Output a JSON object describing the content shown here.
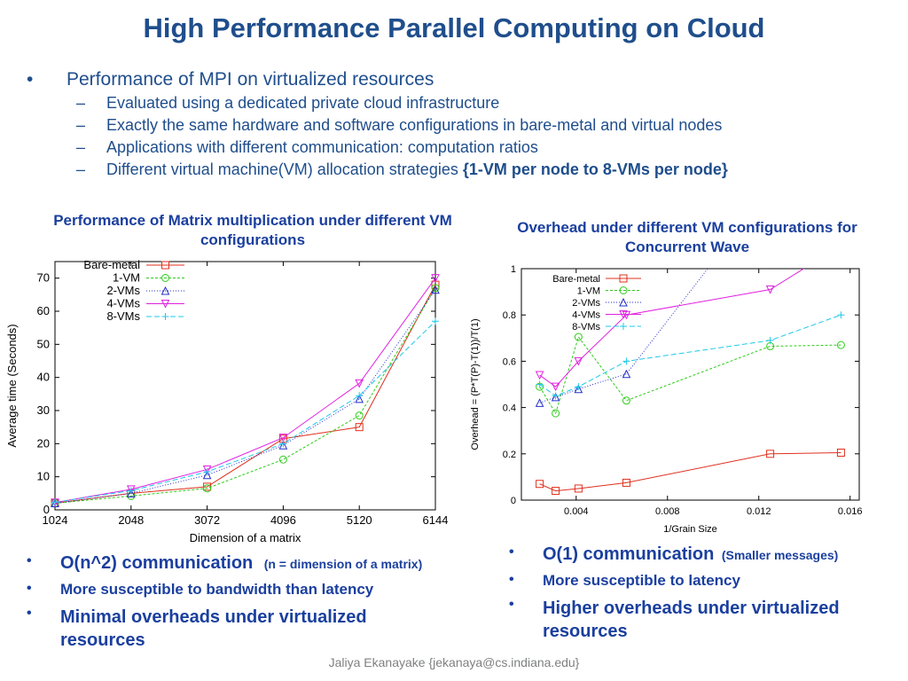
{
  "title": "High Performance Parallel Computing on Cloud",
  "bullets": {
    "main": "Performance of MPI on virtualized resources",
    "sub": [
      "Evaluated using a dedicated private cloud infrastructure",
      "Exactly the same hardware and software configurations in bare-metal and virtual nodes",
      "Applications with different communication: computation ratios",
      "Different virtual machine(VM) allocation strategies"
    ],
    "sub_bold_suffix": "{1-VM per node to 8-VMs per node}"
  },
  "left_caption": "Performance of Matrix multiplication under different VM configurations",
  "right_caption": "Overhead under different VM configurations for Concurrent Wave",
  "left_points": [
    {
      "main": "O(n^2) communication",
      "small": "(n = dimension of a matrix)"
    },
    {
      "main": "More susceptible to bandwidth than latency",
      "small": ""
    },
    {
      "main": "Minimal overheads under virtualized resources",
      "small": ""
    }
  ],
  "right_points": [
    {
      "main": "O(1) communication",
      "small": "(Smaller messages)"
    },
    {
      "main": "More susceptible to latency",
      "small": ""
    },
    {
      "main": "Higher overheads under virtualized resources",
      "small": ""
    }
  ],
  "footer": "Jaliya Ekanayake {jekanaya@cs.indiana.edu}",
  "chart_data": [
    {
      "type": "line",
      "xlabel": "Dimension of a matrix",
      "ylabel": "Average time (Seconds)",
      "x": [
        1024,
        2048,
        3072,
        4096,
        5120,
        6144
      ],
      "xlim": [
        1024,
        6144
      ],
      "ylim": [
        0,
        75
      ],
      "xticks": [
        1024,
        2048,
        3072,
        4096,
        5120,
        6144
      ],
      "yticks": [
        0,
        10,
        20,
        30,
        40,
        50,
        60,
        70
      ],
      "legend_position": "top-left",
      "series": [
        {
          "name": "Bare-metal",
          "color": "#e0301e",
          "marker": "square",
          "dash": "",
          "values": [
            2,
            5,
            7,
            21.5,
            25,
            68
          ]
        },
        {
          "name": "1-VM",
          "color": "#2ecc1a",
          "marker": "circle",
          "dash": "3,2",
          "values": [
            2,
            4.2,
            6.5,
            15.2,
            28.5,
            67
          ]
        },
        {
          "name": "2-VMs",
          "color": "#2530c8",
          "marker": "triangle",
          "dash": "1,2",
          "values": [
            2,
            5,
            10.5,
            19.5,
            33.5,
            66.5
          ]
        },
        {
          "name": "4-VMs",
          "color": "#e020e0",
          "marker": "triangle-down",
          "dash": "",
          "values": [
            2.2,
            6.2,
            12.2,
            21.8,
            38.2,
            70
          ]
        },
        {
          "name": "8-VMs",
          "color": "#20c8e8",
          "marker": "plus",
          "dash": "6,3",
          "values": [
            2.3,
            5.8,
            11.5,
            20,
            34.5,
            57
          ]
        }
      ]
    },
    {
      "type": "line",
      "xlabel": "1/Grain Size",
      "ylabel": "Overhead = (P*T(P)-T(1))/T(1)",
      "xlim": [
        0.0016,
        0.0164
      ],
      "ylim": [
        0,
        1
      ],
      "xticks": [
        0.004,
        0.008,
        0.012,
        0.016
      ],
      "xtick_labels": [
        "0.004",
        "0.008",
        "0.012",
        "0.016"
      ],
      "yticks": [
        0,
        0.2,
        0.4,
        0.6,
        0.8,
        1
      ],
      "ytick_labels": [
        "0",
        "0.2",
        "0.4",
        "0.6",
        "0.8",
        "1"
      ],
      "legend_position": "top-left",
      "series": [
        {
          "name": "Bare-metal",
          "color": "#e0301e",
          "marker": "square",
          "dash": "",
          "x": [
            0.0024,
            0.0031,
            0.0041,
            0.0062,
            0.0125,
            0.0156
          ],
          "values": [
            0.07,
            0.04,
            0.05,
            0.075,
            0.2,
            0.205
          ]
        },
        {
          "name": "1-VM",
          "color": "#2ecc1a",
          "marker": "circle",
          "dash": "3,2",
          "x": [
            0.0024,
            0.0031,
            0.0041,
            0.0062,
            0.0125,
            0.0156
          ],
          "values": [
            0.49,
            0.375,
            0.705,
            0.43,
            0.665,
            0.67
          ]
        },
        {
          "name": "2-VMs",
          "color": "#2530c8",
          "marker": "triangle",
          "dash": "1,2",
          "x": [
            0.0024,
            0.0031,
            0.0041,
            0.0062,
            0.0125
          ],
          "values": [
            0.42,
            0.445,
            0.48,
            0.545,
            1.35
          ]
        },
        {
          "name": "4-VMs",
          "color": "#e020e0",
          "marker": "triangle-down",
          "dash": "",
          "x": [
            0.0024,
            0.0031,
            0.0041,
            0.0062,
            0.0125,
            0.0156
          ],
          "values": [
            0.54,
            0.49,
            0.6,
            0.8,
            0.91,
            1.1
          ]
        },
        {
          "name": "8-VMs",
          "color": "#20c8e8",
          "marker": "plus",
          "dash": "6,3",
          "x": [
            0.0024,
            0.0031,
            0.0041,
            0.0062,
            0.0125,
            0.0156
          ],
          "values": [
            0.5,
            0.45,
            0.49,
            0.6,
            0.69,
            0.8
          ]
        }
      ]
    }
  ]
}
